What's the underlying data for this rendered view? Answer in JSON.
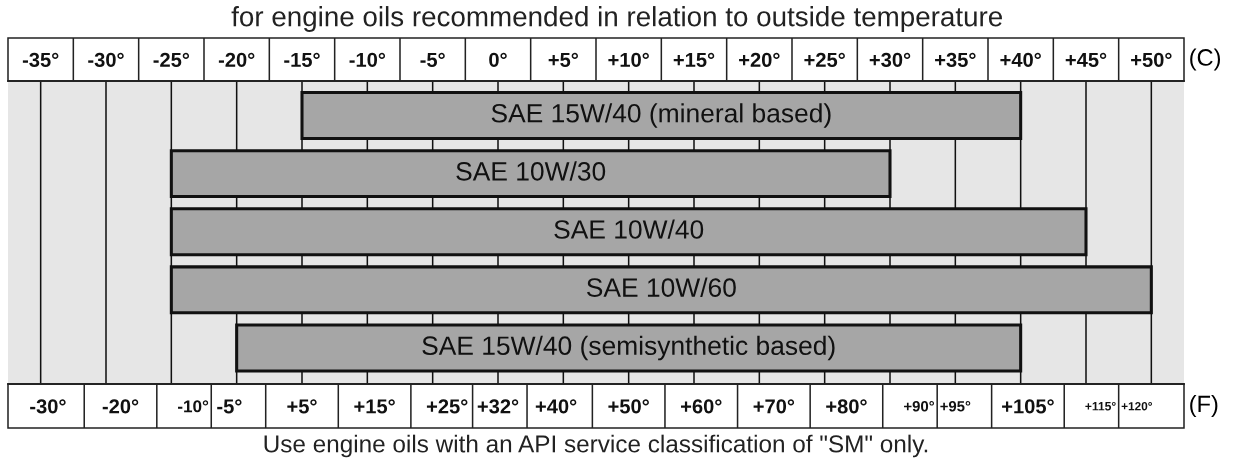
{
  "chart_data": {
    "type": "bar",
    "orientation": "horizontal",
    "title": "for engine oils recommended in relation to outside temperature",
    "xlabel": "(C)",
    "x2label": "(F)",
    "annotations": [
      "Use engine oils with an API service classification of \"SM\" only."
    ],
    "categories": [
      "SAE 15W/40 (mineral based)",
      "SAE 10W/30",
      "SAE 10W/40",
      "SAE 10W/60",
      "SAE 15W/40 (semisynthetic based)"
    ],
    "base": [
      -15,
      -25,
      -25,
      -25,
      -20
    ],
    "values": [
      55,
      55,
      70,
      75,
      60
    ],
    "color": "#a6a6a6",
    "xlim": [
      -37.5,
      52.5
    ],
    "xticks": [
      {
        "value": -35,
        "label": "-35°"
      },
      {
        "value": -30,
        "label": "-30°"
      },
      {
        "value": -25,
        "label": "-25°"
      },
      {
        "value": -20,
        "label": "-20°"
      },
      {
        "value": -15,
        "label": "-15°"
      },
      {
        "value": -10,
        "label": "-10°"
      },
      {
        "value": -5,
        "label": "-5°"
      },
      {
        "value": 0,
        "label": "0°"
      },
      {
        "value": 5,
        "label": "+5°"
      },
      {
        "value": 10,
        "label": "+10°"
      },
      {
        "value": 15,
        "label": "+15°"
      },
      {
        "value": 20,
        "label": "+20°"
      },
      {
        "value": 25,
        "label": "+25°"
      },
      {
        "value": 30,
        "label": "+30°"
      },
      {
        "value": 35,
        "label": "+35°"
      },
      {
        "value": 40,
        "label": "+40°"
      },
      {
        "value": 45,
        "label": "+45°"
      },
      {
        "value": 50,
        "label": "+50°"
      }
    ],
    "x2lim": [
      -35.5,
      126.5
    ],
    "x2ticks": [
      {
        "value": -30,
        "label": "-30°"
      },
      {
        "value": -20,
        "label": "-20°"
      },
      {
        "value": -10,
        "label": "-10°"
      },
      {
        "value": -5,
        "label": "-5°"
      },
      {
        "value": 5,
        "label": "+5°"
      },
      {
        "value": 15,
        "label": "+15°"
      },
      {
        "value": 25,
        "label": "+25°"
      },
      {
        "value": 32,
        "label": "+32°"
      },
      {
        "value": 40,
        "label": "+40°"
      },
      {
        "value": 50,
        "label": "+50°"
      },
      {
        "value": 60,
        "label": "+60°"
      },
      {
        "value": 70,
        "label": "+70°"
      },
      {
        "value": 80,
        "label": "+80°"
      },
      {
        "value": 90,
        "label": "+90°"
      },
      {
        "value": 95,
        "label": "+95°"
      },
      {
        "value": 105,
        "label": "+105°"
      },
      {
        "value": 115,
        "label": "+115°"
      },
      {
        "value": 120,
        "label": "+120°"
      }
    ],
    "grid": "x",
    "tick_labels": "x"
  }
}
